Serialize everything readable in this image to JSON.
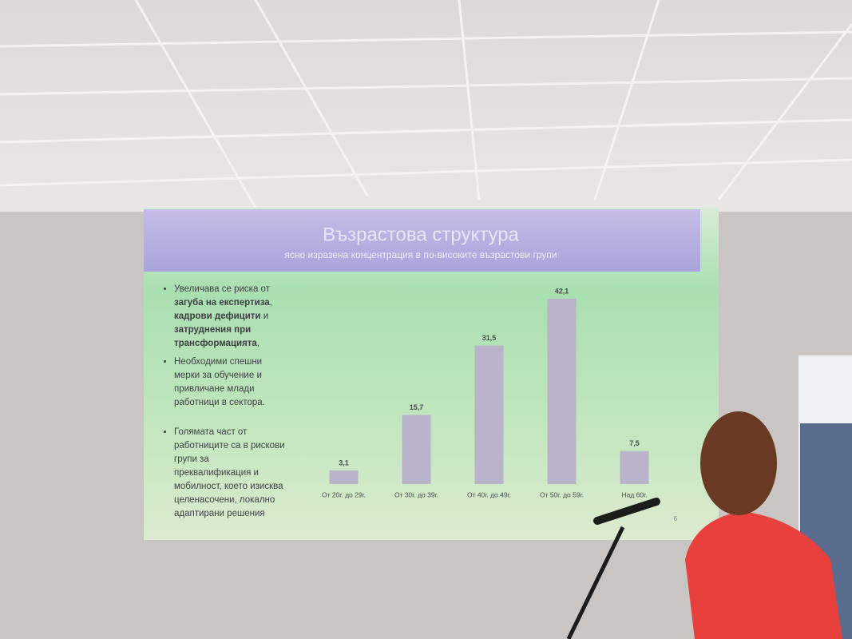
{
  "slide": {
    "title": "Възрастова структура",
    "subtitle": "ясно изразена концентрация в  по-високите възрастови групи",
    "bullets": [
      [
        {
          "text": "Увеличава се риска от ",
          "bold": false
        },
        {
          "text": "загуба на експертиза",
          "bold": true
        },
        {
          "text": ", ",
          "bold": false
        },
        {
          "text": "кадрови дефицити",
          "bold": true
        },
        {
          "text": " и ",
          "bold": false
        },
        {
          "text": "затруднения при трансформацията",
          "bold": true
        },
        {
          "text": ",",
          "bold": false
        }
      ],
      [
        {
          "text": "Необходими спешни мерки за обучение и привличане млади работници в сектора.",
          "bold": false
        }
      ],
      [
        {
          "text": "Голямата част от работниците са в рискови групи за преквалификация и мобилност, което изисква целенасочени, локално адаптирани решения",
          "bold": false
        }
      ]
    ],
    "page_number": "6"
  },
  "chart_data": {
    "type": "bar",
    "categories": [
      "От 20г. до 29г.",
      "От 30г. до 39г.",
      "От 40г. до 49г.",
      "От 50г. до 59г.",
      "Над 60г."
    ],
    "values": [
      3.1,
      15.7,
      31.5,
      42.1,
      7.5
    ],
    "value_labels": [
      "3,1",
      "15,7",
      "31,5",
      "42,1",
      "7,5"
    ],
    "color": "#b9b4c9"
  }
}
